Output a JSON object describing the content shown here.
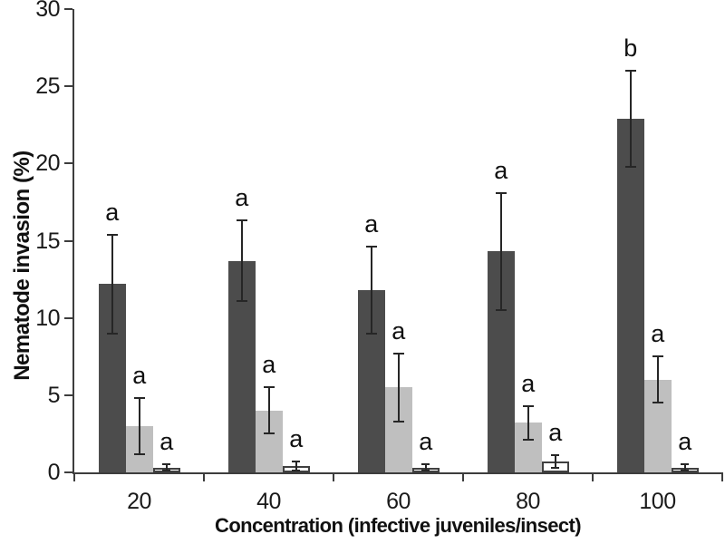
{
  "chart_data": {
    "type": "bar",
    "title": "",
    "xlabel": "Concentration (infective juveniles/insect)",
    "ylabel": "Nematode invasion (%)",
    "categories": [
      "20",
      "40",
      "60",
      "80",
      "100"
    ],
    "ylim": [
      0,
      30
    ],
    "yticks": [
      0,
      5,
      10,
      15,
      20,
      25,
      30
    ],
    "grid": false,
    "legend": "none",
    "error_bars": true,
    "axis_color": "#3d3d3d",
    "error_bar_color": "#262626",
    "series": [
      {
        "name": "dark-gray-bars",
        "color": "#4c4c4c",
        "border_color": "#3a3a3a",
        "values": [
          12.2,
          13.7,
          11.8,
          14.3,
          22.9
        ],
        "errors": [
          3.2,
          2.6,
          2.8,
          3.8,
          3.1
        ],
        "letters": [
          "a",
          "a",
          "a",
          "a",
          "b"
        ]
      },
      {
        "name": "light-gray-bars",
        "color": "#bfbfbf",
        "border_color": "#ababab",
        "values": [
          3.0,
          4.0,
          5.5,
          3.2,
          6.0
        ],
        "errors": [
          1.8,
          1.5,
          2.2,
          1.1,
          1.5
        ],
        "letters": [
          "a",
          "a",
          "a",
          "a",
          "a"
        ]
      },
      {
        "name": "white-bars",
        "color": "#ffffff",
        "border_color": "#404040",
        "values": [
          0.3,
          0.4,
          0.3,
          0.7,
          0.3
        ],
        "errors": [
          0.2,
          0.3,
          0.2,
          0.4,
          0.2
        ],
        "letters": [
          "a",
          "a",
          "a",
          "a",
          "a"
        ]
      }
    ]
  }
}
